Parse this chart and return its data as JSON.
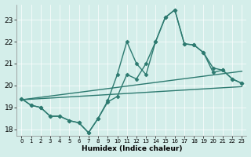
{
  "title": "",
  "xlabel": "Humidex (Indice chaleur)",
  "ylabel": "",
  "bg_color": "#d4eeea",
  "line_color": "#2d7a70",
  "grid_color": "#ffffff",
  "xlim": [
    -0.5,
    23.5
  ],
  "ylim": [
    17.7,
    23.7
  ],
  "yticks": [
    18,
    19,
    20,
    21,
    22,
    23
  ],
  "xticks": [
    0,
    1,
    2,
    3,
    4,
    5,
    6,
    7,
    8,
    9,
    10,
    11,
    12,
    13,
    14,
    15,
    16,
    17,
    18,
    19,
    20,
    21,
    22,
    23
  ],
  "series": [
    {
      "x": [
        0,
        1,
        2,
        3,
        4,
        5,
        6,
        7,
        8,
        9,
        10,
        11,
        12,
        13,
        14,
        15,
        16,
        17,
        18,
        19,
        20,
        21,
        22,
        23
      ],
      "y": [
        19.4,
        19.1,
        19.0,
        18.6,
        18.6,
        18.4,
        18.3,
        17.85,
        18.5,
        19.3,
        20.5,
        22.0,
        21.0,
        20.5,
        22.0,
        23.1,
        23.45,
        21.9,
        21.85,
        21.5,
        20.8,
        20.7,
        20.3,
        20.1
      ],
      "marker": "D",
      "markersize": 2.5,
      "linewidth": 1.0
    },
    {
      "x": [
        0,
        1,
        2,
        3,
        4,
        5,
        6,
        7,
        8,
        9,
        10,
        11,
        12,
        13,
        14,
        15,
        16,
        17,
        18,
        19,
        20,
        21,
        22,
        23
      ],
      "y": [
        19.4,
        19.1,
        19.0,
        18.6,
        18.6,
        18.4,
        18.3,
        17.85,
        18.5,
        19.25,
        19.5,
        20.5,
        20.3,
        21.0,
        22.0,
        23.1,
        23.45,
        21.9,
        21.85,
        21.5,
        20.6,
        20.7,
        20.3,
        20.1
      ],
      "marker": "D",
      "markersize": 2.5,
      "linewidth": 1.0
    },
    {
      "x": [
        0,
        23
      ],
      "y": [
        19.35,
        19.95
      ],
      "marker": null,
      "markersize": 0,
      "linewidth": 1.0
    },
    {
      "x": [
        0,
        23
      ],
      "y": [
        19.35,
        20.65
      ],
      "marker": null,
      "markersize": 0,
      "linewidth": 1.0
    }
  ]
}
